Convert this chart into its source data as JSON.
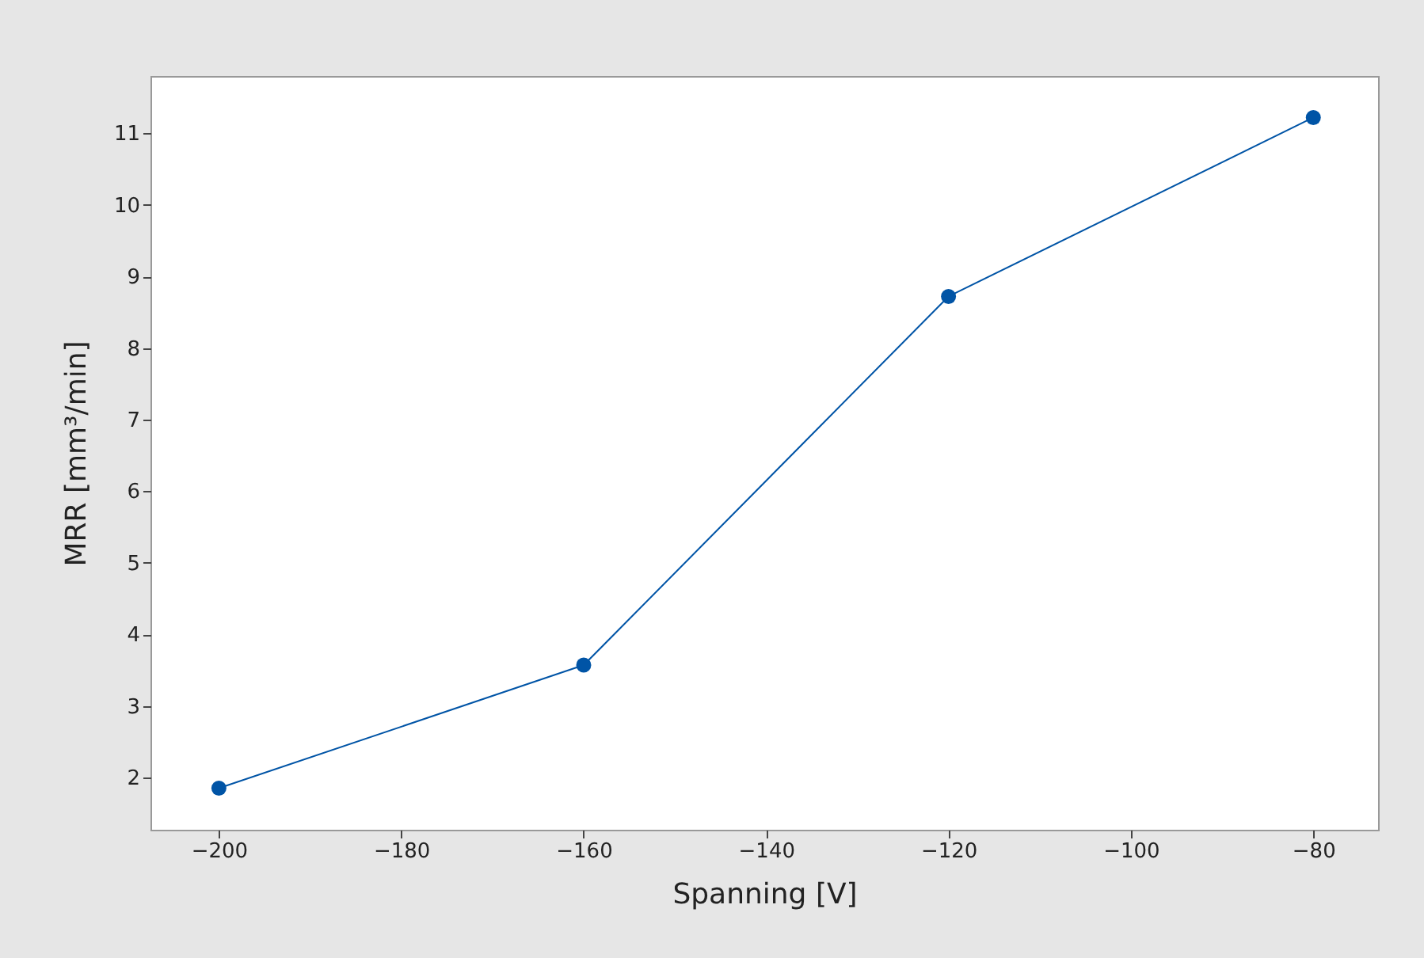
{
  "chart_data": {
    "type": "line",
    "xlabel": "Spanning [V]",
    "ylabel": "MRR [mm³/min]",
    "x": [
      -200,
      -160,
      -120,
      -80
    ],
    "series": [
      {
        "color": "#0054a6",
        "values": [
          1.85,
          3.57,
          8.72,
          11.22
        ]
      }
    ],
    "xlim": [
      -207.5,
      -72.9
    ],
    "ylim": [
      1.27,
      11.8
    ],
    "xticks": [
      -200,
      -180,
      -160,
      -140,
      -120,
      -100,
      -80
    ],
    "yticks": [
      2,
      3,
      4,
      5,
      6,
      7,
      8,
      9,
      10,
      11
    ],
    "marker": "circle",
    "line_style": "solid"
  }
}
